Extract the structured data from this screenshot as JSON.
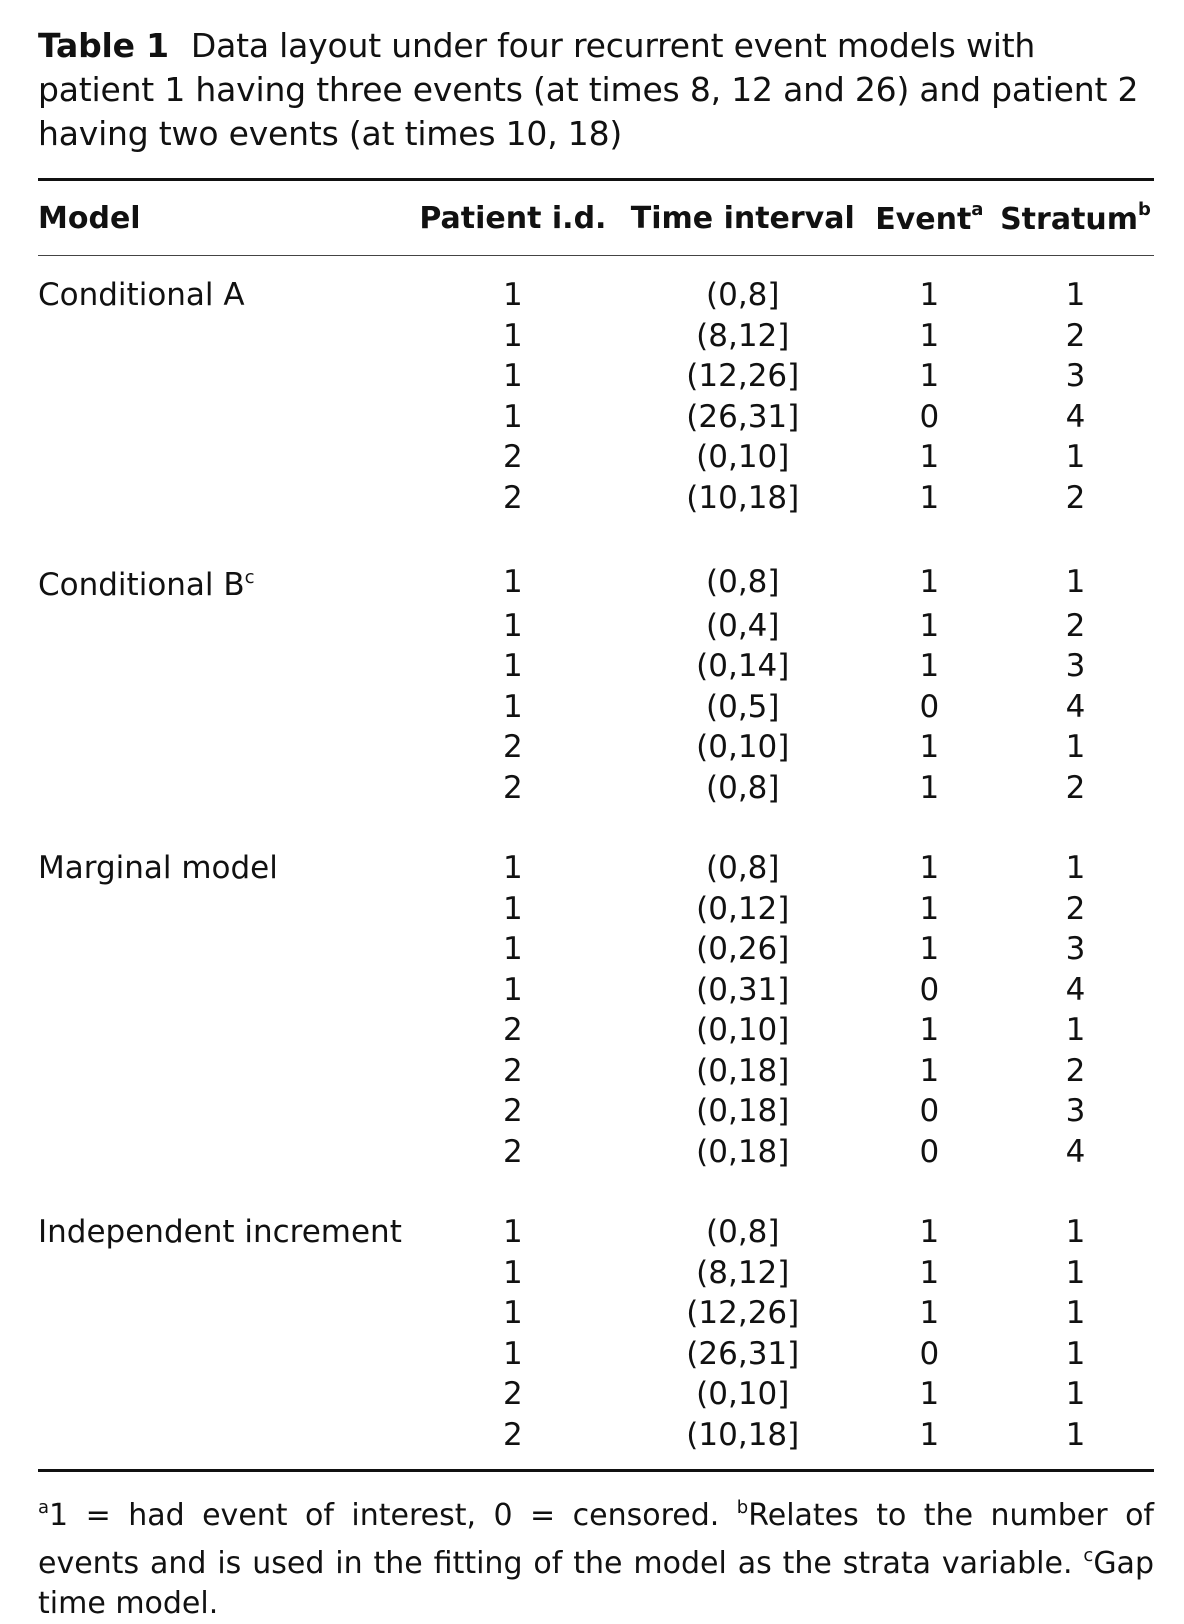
{
  "caption": {
    "label": "Table 1",
    "text": "Data layout under four recurrent event models with patient 1 having three events (at times 8, 12 and 26) and patient 2 having two events (at times 10, 18)"
  },
  "table": {
    "headers": {
      "model": "Model",
      "patient": "Patient i.d.",
      "interval": "Time interval",
      "event": "Event",
      "event_sup": "a",
      "stratum": "Stratum",
      "stratum_sup": "b"
    },
    "groups": [
      {
        "model": "Conditional A",
        "model_sup": "",
        "rows": [
          [
            "1",
            "(0,8]",
            "1",
            "1"
          ],
          [
            "1",
            "(8,12]",
            "1",
            "2"
          ],
          [
            "1",
            "(12,26]",
            "1",
            "3"
          ],
          [
            "1",
            "(26,31]",
            "0",
            "4"
          ],
          [
            "2",
            "(0,10]",
            "1",
            "1"
          ],
          [
            "2",
            "(10,18]",
            "1",
            "2"
          ]
        ]
      },
      {
        "model": "Conditional B",
        "model_sup": "c",
        "rows": [
          [
            "1",
            "(0,8]",
            "1",
            "1"
          ],
          [
            "1",
            "(0,4]",
            "1",
            "2"
          ],
          [
            "1",
            "(0,14]",
            "1",
            "3"
          ],
          [
            "1",
            "(0,5]",
            "0",
            "4"
          ],
          [
            "2",
            "(0,10]",
            "1",
            "1"
          ],
          [
            "2",
            "(0,8]",
            "1",
            "2"
          ]
        ]
      },
      {
        "model": "Marginal model",
        "model_sup": "",
        "rows": [
          [
            "1",
            "(0,8]",
            "1",
            "1"
          ],
          [
            "1",
            "(0,12]",
            "1",
            "2"
          ],
          [
            "1",
            "(0,26]",
            "1",
            "3"
          ],
          [
            "1",
            "(0,31]",
            "0",
            "4"
          ],
          [
            "2",
            "(0,10]",
            "1",
            "1"
          ],
          [
            "2",
            "(0,18]",
            "1",
            "2"
          ],
          [
            "2",
            "(0,18]",
            "0",
            "3"
          ],
          [
            "2",
            "(0,18]",
            "0",
            "4"
          ]
        ]
      },
      {
        "model": "Independent increment",
        "model_sup": "",
        "rows": [
          [
            "1",
            "(0,8]",
            "1",
            "1"
          ],
          [
            "1",
            "(8,12]",
            "1",
            "1"
          ],
          [
            "1",
            "(12,26]",
            "1",
            "1"
          ],
          [
            "1",
            "(26,31]",
            "0",
            "1"
          ],
          [
            "2",
            "(0,10]",
            "1",
            "1"
          ],
          [
            "2",
            "(10,18]",
            "1",
            "1"
          ]
        ]
      }
    ]
  },
  "footnotes": [
    {
      "sup": "a",
      "text": "1 = had event of interest, 0 = censored. "
    },
    {
      "sup": "b",
      "text": "Relates to the number of events and is used in the fitting of the model as the strata variable. "
    },
    {
      "sup": "c",
      "text": "Gap time model."
    }
  ]
}
